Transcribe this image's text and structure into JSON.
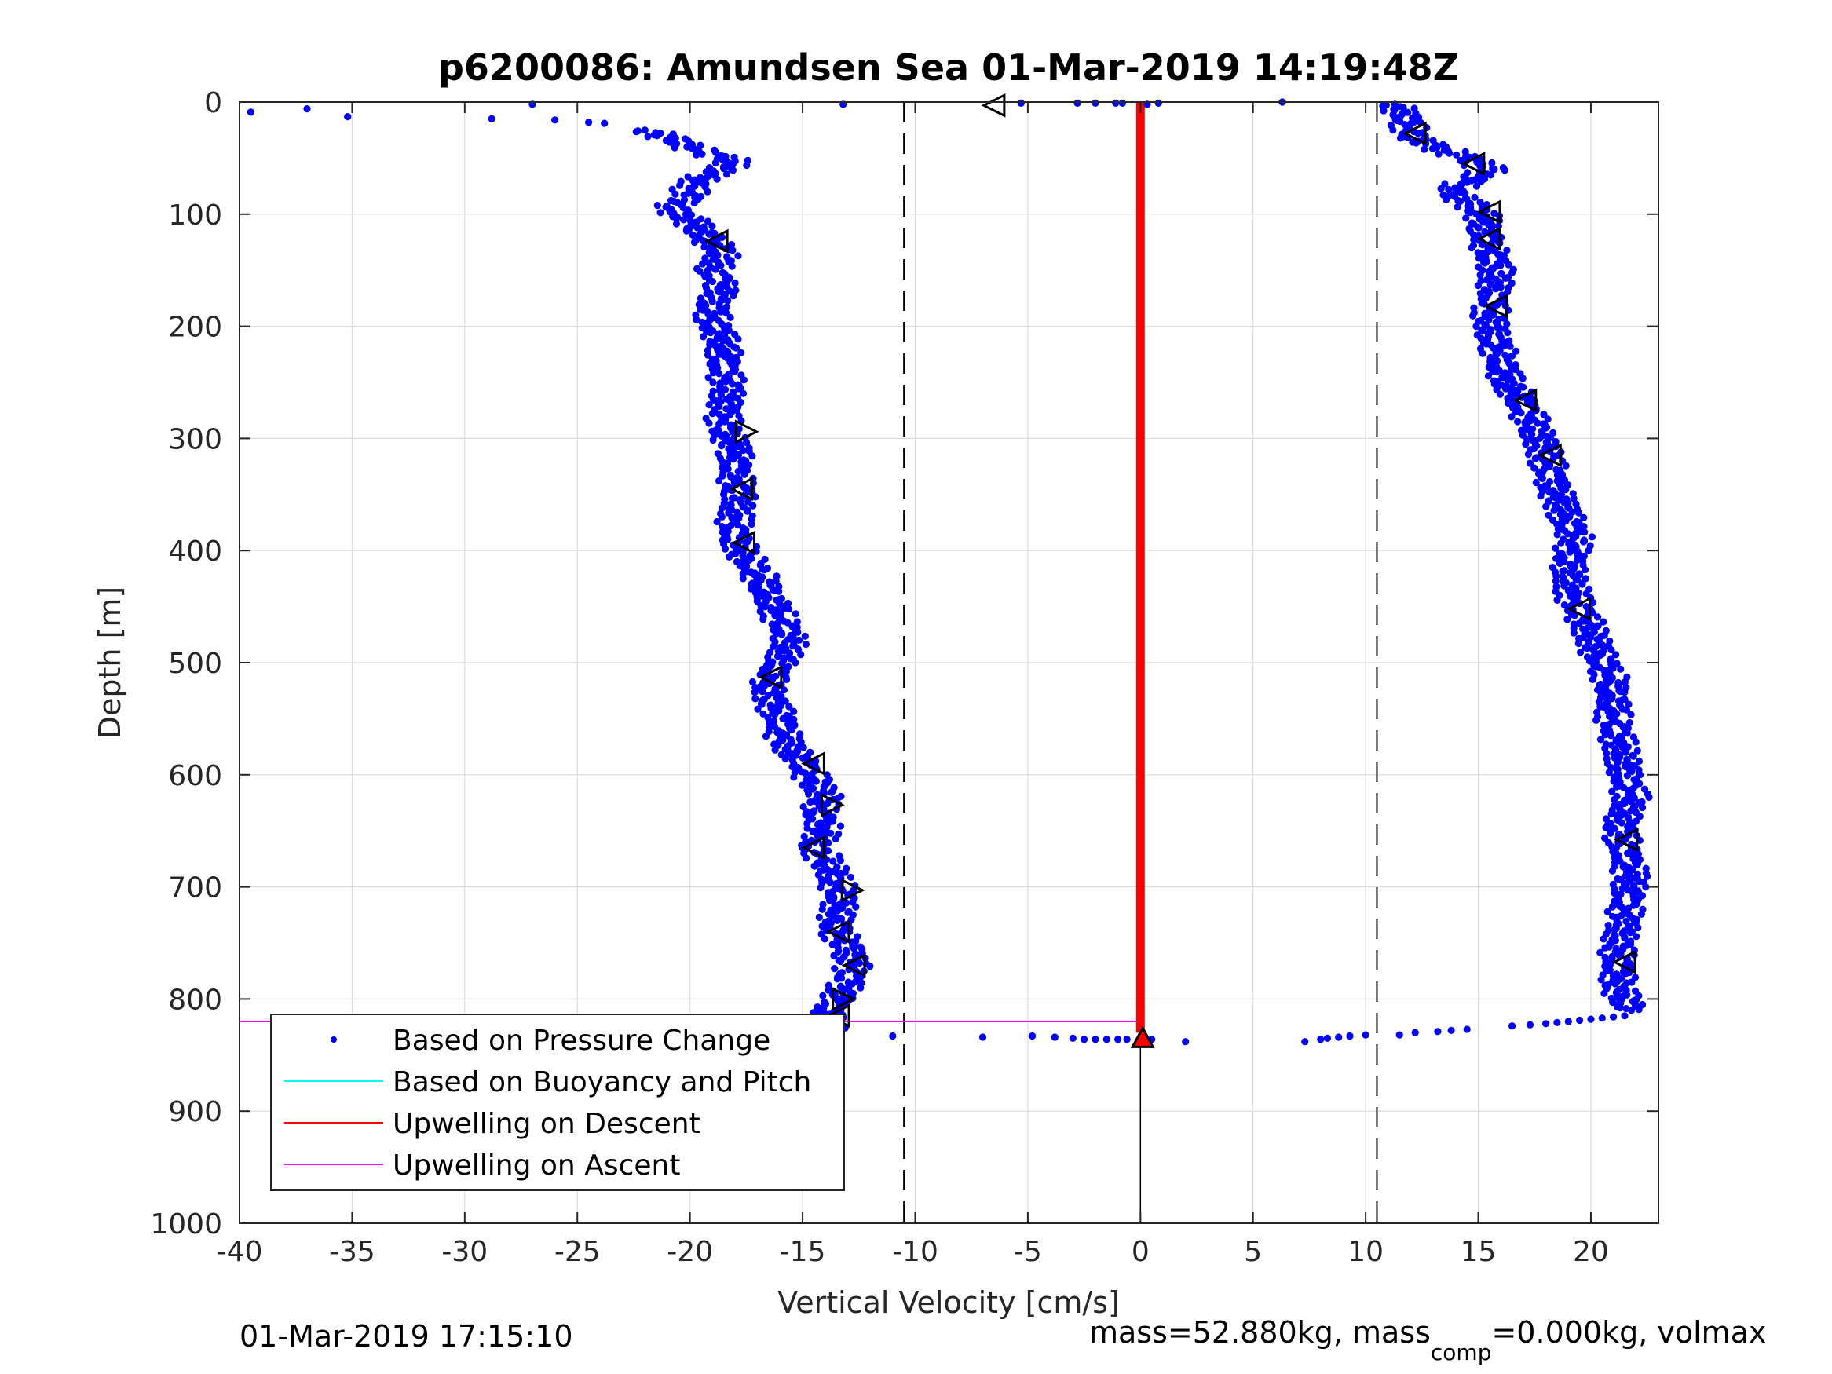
{
  "chart_data": {
    "type": "scatter",
    "title": "p6200086: Amundsen Sea 01-Mar-2019 14:19:48Z",
    "xlabel": "Vertical Velocity [cm/s]",
    "ylabel": "Depth [m]",
    "xlim": [
      -40,
      23
    ],
    "ylim": [
      0,
      1000
    ],
    "y_reversed": true,
    "grid": true,
    "x_ticks": [
      -40,
      -35,
      -30,
      -25,
      -20,
      -15,
      -10,
      -5,
      0,
      5,
      10,
      15,
      20
    ],
    "y_ticks": [
      0,
      100,
      200,
      300,
      400,
      500,
      600,
      700,
      800,
      900,
      1000
    ],
    "x_tick_labels": [
      "-40",
      "-35",
      "-30",
      "-25",
      "-20",
      "-15",
      "-10",
      "-5",
      "0",
      "5",
      "10",
      "15",
      "20"
    ],
    "y_tick_labels": [
      "0",
      "100",
      "200",
      "300",
      "400",
      "500",
      "600",
      "700",
      "800",
      "900",
      "1000"
    ],
    "legend_location": "bottom-left",
    "legend": [
      {
        "label": "Based on Pressure Change",
        "marker": "dot",
        "color": "#0000ff"
      },
      {
        "label": "Based on Buoyancy and Pitch",
        "marker": "line",
        "color": "#00ffff"
      },
      {
        "label": "Upwelling on Descent",
        "marker": "line",
        "color": "#ff0000"
      },
      {
        "label": "Upwelling on Ascent",
        "marker": "line",
        "color": "#ff00ff"
      }
    ],
    "threshold_lines_x": [
      -10.5,
      10.5
    ],
    "vertical_zero_line": {
      "x": 0,
      "y_from": 835,
      "y_to": 1000
    },
    "series": [
      {
        "name": "Based on Pressure Change",
        "color": "#0000ff",
        "descent": [
          [
            -22,
            25
          ],
          [
            -20.5,
            35
          ],
          [
            -19.5,
            45
          ],
          [
            -18,
            52
          ],
          [
            -18.5,
            60
          ],
          [
            -19.5,
            68
          ],
          [
            -20,
            75
          ],
          [
            -20,
            85
          ],
          [
            -21,
            95
          ],
          [
            -20,
            105
          ],
          [
            -19.5,
            115
          ],
          [
            -19,
            125
          ],
          [
            -18.5,
            135
          ],
          [
            -19,
            150
          ],
          [
            -18.5,
            165
          ],
          [
            -19,
            180
          ],
          [
            -19,
            195
          ],
          [
            -18.5,
            215
          ],
          [
            -18.5,
            235
          ],
          [
            -18.3,
            255
          ],
          [
            -18.5,
            275
          ],
          [
            -18.5,
            290
          ],
          [
            -18,
            310
          ],
          [
            -18,
            330
          ],
          [
            -17.8,
            350
          ],
          [
            -18,
            370
          ],
          [
            -18,
            390
          ],
          [
            -17.5,
            405
          ],
          [
            -17,
            420
          ],
          [
            -16.5,
            440
          ],
          [
            -16,
            460
          ],
          [
            -15.5,
            480
          ],
          [
            -16,
            500
          ],
          [
            -16.5,
            515
          ],
          [
            -16.5,
            530
          ],
          [
            -16,
            550
          ],
          [
            -15.8,
            570
          ],
          [
            -15,
            590
          ],
          [
            -14.5,
            605
          ],
          [
            -14,
            620
          ],
          [
            -14.3,
            635
          ],
          [
            -14,
            650
          ],
          [
            -14.5,
            665
          ],
          [
            -13.8,
            680
          ],
          [
            -13.5,
            695
          ],
          [
            -13.3,
            710
          ],
          [
            -13.5,
            725
          ],
          [
            -13.5,
            740
          ],
          [
            -13,
            755
          ],
          [
            -12.8,
            770
          ],
          [
            -13,
            785
          ],
          [
            -13.5,
            800
          ],
          [
            -14,
            815
          ],
          [
            -13.7,
            828
          ]
        ],
        "ascent": [
          [
            11.3,
            2
          ],
          [
            11.8,
            15
          ],
          [
            12,
            30
          ],
          [
            13,
            40
          ],
          [
            14.5,
            50
          ],
          [
            15.5,
            60
          ],
          [
            14.5,
            70
          ],
          [
            13.8,
            80
          ],
          [
            14.5,
            90
          ],
          [
            15.2,
            100
          ],
          [
            15.3,
            115
          ],
          [
            15.5,
            130
          ],
          [
            15.8,
            150
          ],
          [
            15.7,
            170
          ],
          [
            15.5,
            190
          ],
          [
            15.7,
            210
          ],
          [
            16,
            230
          ],
          [
            16.3,
            250
          ],
          [
            17,
            270
          ],
          [
            17.5,
            290
          ],
          [
            18,
            315
          ],
          [
            18.3,
            340
          ],
          [
            18.8,
            365
          ],
          [
            19.3,
            390
          ],
          [
            19,
            415
          ],
          [
            19.2,
            440
          ],
          [
            19.8,
            465
          ],
          [
            20.3,
            490
          ],
          [
            20.8,
            510
          ],
          [
            21,
            530
          ],
          [
            21,
            550
          ],
          [
            21.3,
            575
          ],
          [
            21.5,
            600
          ],
          [
            21.8,
            620
          ],
          [
            21.3,
            645
          ],
          [
            21.5,
            670
          ],
          [
            21.8,
            690
          ],
          [
            21.6,
            710
          ],
          [
            21.5,
            730
          ],
          [
            21.2,
            750
          ],
          [
            21.2,
            770
          ],
          [
            21.2,
            790
          ],
          [
            21.8,
            810
          ]
        ],
        "surface_outliers": [
          [
            -27,
            2
          ],
          [
            -39.5,
            9
          ],
          [
            -37,
            6
          ],
          [
            -35.2,
            13
          ],
          [
            -28.8,
            15
          ],
          [
            -26,
            16
          ],
          [
            -24.5,
            18
          ],
          [
            -23.8,
            19
          ],
          [
            -13.2,
            2
          ],
          [
            -5.3,
            1
          ],
          [
            -2.8,
            1
          ],
          [
            -2,
            1
          ],
          [
            -1.1,
            1
          ],
          [
            -0.8,
            1
          ],
          [
            0.3,
            2
          ],
          [
            0.8,
            1
          ],
          [
            6.3,
            0
          ]
        ],
        "bottom_outliers": [
          [
            -14.5,
            830
          ],
          [
            -11,
            833
          ],
          [
            -7,
            834
          ],
          [
            -4.8,
            833
          ],
          [
            -3.8,
            834
          ],
          [
            -3,
            835
          ],
          [
            -2.5,
            836
          ],
          [
            -2,
            836
          ],
          [
            -1.5,
            836
          ],
          [
            -1,
            836
          ],
          [
            -0.6,
            836
          ],
          [
            0.5,
            836
          ],
          [
            2,
            838
          ],
          [
            7.3,
            838
          ],
          [
            8,
            836
          ],
          [
            8.3,
            835
          ],
          [
            8.8,
            834
          ],
          [
            9.3,
            833
          ],
          [
            10,
            832
          ],
          [
            11.5,
            832
          ],
          [
            12.2,
            830
          ],
          [
            13.2,
            829
          ],
          [
            13.8,
            828
          ],
          [
            14.5,
            827
          ],
          [
            16.5,
            824
          ],
          [
            17.3,
            823
          ],
          [
            18,
            822
          ],
          [
            18.5,
            821
          ],
          [
            19,
            820
          ],
          [
            19.5,
            819
          ],
          [
            20,
            818
          ],
          [
            20.5,
            817
          ],
          [
            21,
            816
          ],
          [
            21.5,
            815
          ]
        ]
      },
      {
        "name": "Upwelling on Descent",
        "color": "#ff0000",
        "x": 0,
        "y_from": 0,
        "y_to": 830
      },
      {
        "name": "Upwelling on Ascent",
        "color": "#ff00ff",
        "horizontal_lines": [
          {
            "y": 0,
            "x_from": -40,
            "x_to": 0
          },
          {
            "y": 820,
            "x_from": -40,
            "x_to": 0
          }
        ]
      }
    ],
    "triangle_markers": [
      {
        "dir": "left",
        "x": -6.5,
        "y": 3
      },
      {
        "dir": "left",
        "x": 12.2,
        "y": 28
      },
      {
        "dir": "left",
        "x": 14.8,
        "y": 55
      },
      {
        "dir": "left",
        "x": 15.5,
        "y": 98
      },
      {
        "dir": "left",
        "x": -18.8,
        "y": 124
      },
      {
        "dir": "left",
        "x": 15.5,
        "y": 122
      },
      {
        "dir": "left",
        "x": 15.8,
        "y": 182
      },
      {
        "dir": "left",
        "x": 17.1,
        "y": 266
      },
      {
        "dir": "right",
        "x": -17.5,
        "y": 294
      },
      {
        "dir": "left",
        "x": 18.2,
        "y": 315
      },
      {
        "dir": "left",
        "x": -17.7,
        "y": 345
      },
      {
        "dir": "left",
        "x": -17.6,
        "y": 393
      },
      {
        "dir": "left",
        "x": 19.5,
        "y": 452
      },
      {
        "dir": "left",
        "x": -16.4,
        "y": 513
      },
      {
        "dir": "left",
        "x": -14.5,
        "y": 590
      },
      {
        "dir": "right",
        "x": -13.7,
        "y": 627
      },
      {
        "dir": "left",
        "x": -14.5,
        "y": 665
      },
      {
        "dir": "left",
        "x": 21.6,
        "y": 658
      },
      {
        "dir": "right",
        "x": -12.8,
        "y": 703
      },
      {
        "dir": "left",
        "x": -13.4,
        "y": 740
      },
      {
        "dir": "left",
        "x": -12.7,
        "y": 770
      },
      {
        "dir": "left",
        "x": 21.5,
        "y": 767
      },
      {
        "dir": "right",
        "x": -13.2,
        "y": 800
      },
      {
        "dir": "left",
        "x": -13.4,
        "y": 815
      }
    ],
    "bottom_markers": [
      {
        "x": -13.8,
        "y": 830,
        "color": "#ff0000"
      },
      {
        "x": 0.1,
        "y": 835,
        "color": "#ff0000"
      }
    ]
  },
  "footer": {
    "timestamp": "01-Mar-2019 17:15:10",
    "mass_text_1": "mass=52.880kg, mass",
    "mass_sub": "comp",
    "mass_text_2": "=0.000kg, volmax"
  }
}
